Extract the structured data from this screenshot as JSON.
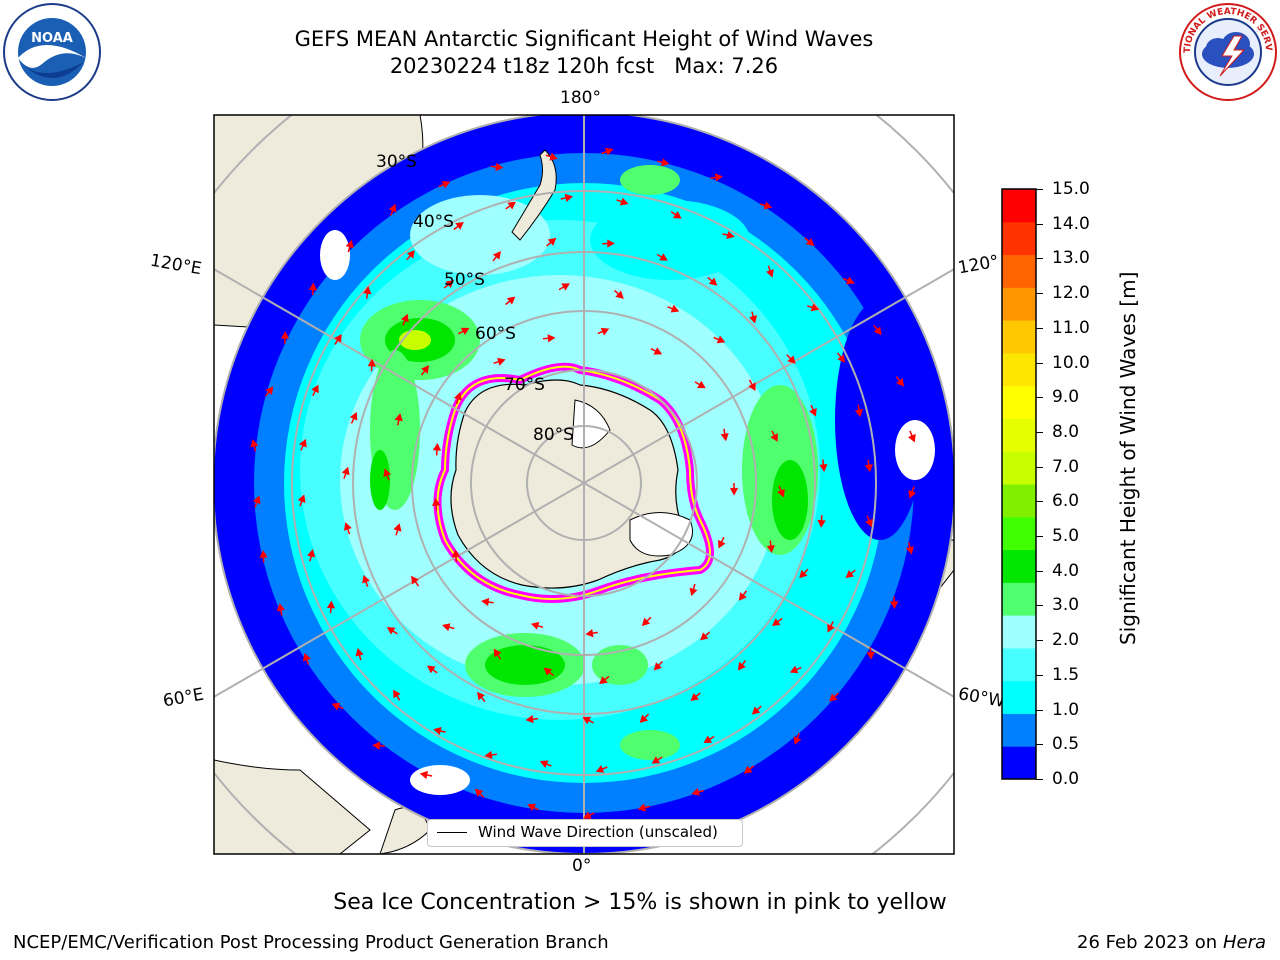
{
  "title": {
    "line1": "GEFS MEAN Antarctic Significant Height of Wind Waves",
    "line2": "20230224 t18z 120h fcst   Max: 7.26"
  },
  "logos": {
    "left": {
      "name": "noaa-logo",
      "text": "NOAA"
    },
    "right": {
      "name": "nws-logo",
      "text": "NATIONAL WEATHER SERVICE"
    }
  },
  "map": {
    "projection": "south-polar-stereographic",
    "longitude_labels": [
      "180°",
      "120°E",
      "120°",
      "60°E",
      "60°W",
      "0°"
    ],
    "latitude_labels": [
      "30°S",
      "40°S",
      "50°S",
      "60°S",
      "70°S",
      "80°S"
    ],
    "land_color": "#efebdc",
    "arrow_color": "#ff0000",
    "sea_ice_colors": [
      "#ff00ff",
      "#ffb6c1",
      "#ffff00"
    ],
    "legend_label": "Wind Wave Direction (unscaled)"
  },
  "colorbar": {
    "label": "Significant Height of Wind Waves [m]",
    "ticks": [
      "15.0",
      "14.0",
      "13.0",
      "12.0",
      "11.0",
      "10.0",
      "9.0",
      "8.0",
      "7.0",
      "6.0",
      "5.0",
      "4.0",
      "3.0",
      "2.0",
      "1.5",
      "1.0",
      "0.5",
      "0.0"
    ],
    "colors": [
      "#0000ff",
      "#007fff",
      "#00ffff",
      "#48ffff",
      "#a0ffff",
      "#50ff6e",
      "#00e600",
      "#40ff00",
      "#80f000",
      "#c8ff00",
      "#e6ff00",
      "#ffff00",
      "#ffe600",
      "#ffc800",
      "#ff9600",
      "#ff6400",
      "#ff3200",
      "#ff0000"
    ]
  },
  "notes": {
    "sea_ice": "Sea Ice Concentration > 15% is shown in pink to yellow",
    "footer_left": "NCEP/EMC/Verification Post Processing Product Generation Branch",
    "footer_date": "26 Feb 2023 on",
    "footer_host": "Hera"
  }
}
